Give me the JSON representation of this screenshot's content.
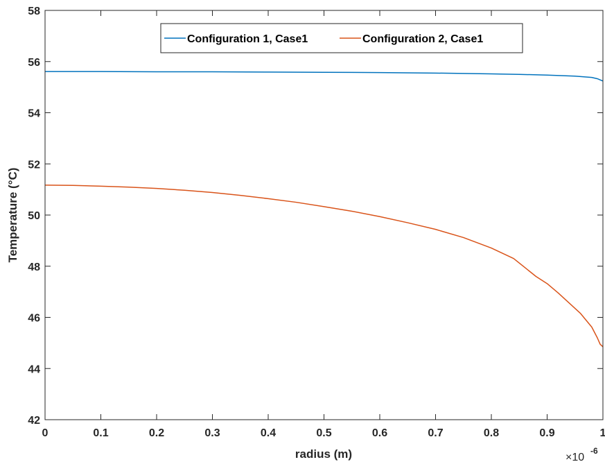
{
  "chart_data": {
    "type": "line",
    "xlabel": "radius (m)",
    "ylabel": "Temperature (°C)",
    "x_multiplier": "×10",
    "x_multiplier_exp": "-6",
    "xlim": [
      0,
      1
    ],
    "ylim": [
      42,
      58
    ],
    "xticks": [
      0,
      0.1,
      0.2,
      0.3,
      0.4,
      0.5,
      0.6,
      0.7,
      0.8,
      0.9,
      1
    ],
    "xtick_labels": [
      "0",
      "0.1",
      "0.2",
      "0.3",
      "0.4",
      "0.5",
      "0.6",
      "0.7",
      "0.8",
      "0.9",
      "1"
    ],
    "yticks": [
      42,
      44,
      46,
      48,
      50,
      52,
      54,
      56,
      58
    ],
    "ytick_labels": [
      "42",
      "44",
      "46",
      "48",
      "50",
      "52",
      "54",
      "56",
      "58"
    ],
    "grid": false,
    "legend": "top, inside",
    "series": [
      {
        "name": "Configuration 1, Case1",
        "color": "#0072BD",
        "x": [
          0,
          0.1,
          0.2,
          0.3,
          0.4,
          0.5,
          0.6,
          0.7,
          0.8,
          0.85,
          0.9,
          0.95,
          0.98,
          0.99,
          1.0
        ],
        "y": [
          55.61,
          55.61,
          55.6,
          55.6,
          55.59,
          55.58,
          55.57,
          55.55,
          55.52,
          55.5,
          55.47,
          55.43,
          55.38,
          55.33,
          55.24
        ]
      },
      {
        "name": "Configuration 2, Case1",
        "color": "#D95319",
        "x": [
          0,
          0.05,
          0.1,
          0.15,
          0.2,
          0.25,
          0.3,
          0.35,
          0.4,
          0.45,
          0.5,
          0.55,
          0.6,
          0.65,
          0.7,
          0.75,
          0.8,
          0.84,
          0.86,
          0.88,
          0.9,
          0.92,
          0.94,
          0.96,
          0.98,
          0.99,
          0.995,
          1.0
        ],
        "y": [
          51.17,
          51.16,
          51.13,
          51.09,
          51.04,
          50.97,
          50.88,
          50.77,
          50.64,
          50.5,
          50.33,
          50.15,
          49.94,
          49.7,
          49.44,
          49.12,
          48.71,
          48.3,
          47.95,
          47.6,
          47.32,
          46.95,
          46.55,
          46.15,
          45.62,
          45.2,
          44.95,
          44.85
        ]
      }
    ]
  }
}
